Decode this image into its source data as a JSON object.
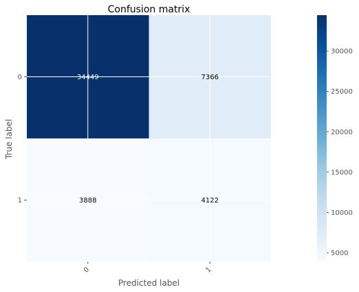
{
  "chart_data": {
    "type": "heatmap",
    "title": "Confusion matrix",
    "xlabel": "Predicted label",
    "ylabel": "True label",
    "x_categories": [
      "0",
      "1"
    ],
    "y_categories": [
      "0",
      "1"
    ],
    "values": [
      [
        34449,
        7366
      ],
      [
        3888,
        4122
      ]
    ],
    "colormap": "Blues",
    "color_min": 3888,
    "color_max": 34449,
    "colorbar_ticks": [
      5000,
      10000,
      15000,
      20000,
      25000,
      30000
    ],
    "grid": true,
    "x_tick_rotation": "45 degrees",
    "colors": {
      "low": "#f7fbff",
      "high": "#08306b",
      "grid": "#ffffff",
      "text_on_dark": "#ffffff",
      "text_on_light": "#000000"
    }
  }
}
